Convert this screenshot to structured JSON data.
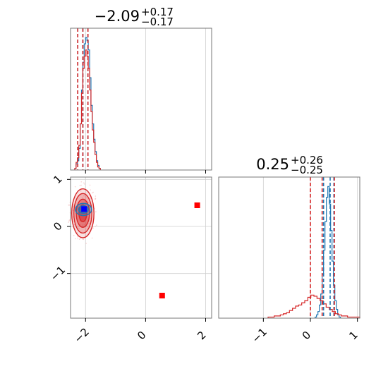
{
  "chart_data": [
    {
      "type": "histogram",
      "panel": "top-left",
      "title": {
        "value": "−2.09",
        "plus": "+0.17",
        "minus": "−0.17"
      },
      "xlim": [
        -2.5,
        2.2
      ],
      "xticks": [
        -2,
        0,
        2
      ],
      "grid": true,
      "series": [
        {
          "color": "#1f77b4",
          "bins": {
            "start": -2.36,
            "width": 0.045,
            "counts": [
              1,
              4,
              6,
              14,
              30,
              52,
              70,
              82,
              86,
              84,
              78,
              60,
              42,
              30,
              20,
              12,
              6,
              3,
              1
            ]
          }
        },
        {
          "color": "#d62728",
          "bins": {
            "start": -2.36,
            "width": 0.045,
            "counts": [
              1,
              5,
              8,
              16,
              30,
              50,
              66,
              74,
              78,
              74,
              66,
              52,
              38,
              26,
              18,
              10,
              5,
              2,
              1
            ]
          }
        }
      ],
      "quantile_lines": [
        {
          "color": "#1f77b4",
          "values": [
            -2.26,
            -2.09,
            -1.92
          ]
        },
        {
          "color": "#d62728",
          "values": [
            -2.26,
            -2.09,
            -1.92
          ]
        }
      ]
    },
    {
      "type": "histogram",
      "panel": "bottom-right",
      "title": {
        "value": "0.25",
        "plus": "+0.26",
        "minus": "−0.25"
      },
      "xlim": [
        -1.95,
        1.05
      ],
      "xticks": [
        -1,
        0,
        1
      ],
      "grid": true,
      "series": [
        {
          "color": "#1f77b4",
          "bins": {
            "start": 0.1,
            "width": 0.03,
            "counts": [
              1,
              3,
              6,
              12,
              22,
              40,
              62,
              88,
              110,
              120,
              104,
              80,
              52,
              30,
              16,
              8,
              3,
              1
            ]
          }
        },
        {
          "color": "#d62728",
          "bins": {
            "start": -0.9,
            "width": 0.065,
            "counts": [
              1,
              1,
              2,
              2,
              3,
              4,
              5,
              7,
              9,
              11,
              12,
              14,
              16,
              19,
              21,
              20,
              18,
              16,
              13,
              10,
              8,
              6,
              4,
              3,
              2,
              2,
              1,
              1,
              1,
              1
            ]
          }
        }
      ],
      "quantile_lines": [
        {
          "color": "#1f77b4",
          "values": [
            0.28,
            0.42,
            0.5
          ]
        },
        {
          "color": "#d62728",
          "values": [
            0.0,
            0.25,
            0.51
          ]
        }
      ]
    },
    {
      "type": "scatter",
      "panel": "bottom-left",
      "xlim": [
        -2.5,
        2.2
      ],
      "ylim": [
        -1.95,
        1.05
      ],
      "xticks": [
        -2,
        0,
        2
      ],
      "yticks": [
        -1,
        0,
        1
      ],
      "grid": true,
      "contours": [
        {
          "color": "#d62728",
          "cx": -2.09,
          "cy": 0.28,
          "levels": [
            {
              "rx": 0.37,
              "ry": 0.52,
              "opacity": 0.25
            },
            {
              "rx": 0.3,
              "ry": 0.42,
              "opacity": 0.45
            },
            {
              "rx": 0.22,
              "ry": 0.3,
              "opacity": 0.75
            },
            {
              "rx": 0.13,
              "ry": 0.18,
              "opacity": 1
            }
          ]
        },
        {
          "color": "#1f77b4",
          "cx": -2.07,
          "cy": 0.36,
          "levels": [
            {
              "rx": 0.27,
              "ry": 0.13,
              "opacity": 0.55
            },
            {
              "rx": 0.16,
              "ry": 0.08,
              "opacity": 0.9
            }
          ]
        }
      ],
      "markers": [
        {
          "x": 1.72,
          "y": 0.45,
          "color": "#ff0000"
        },
        {
          "x": 0.55,
          "y": -1.47,
          "color": "#ff0000"
        },
        {
          "x": -2.05,
          "y": 0.37,
          "color": "#0000ff"
        }
      ]
    }
  ]
}
